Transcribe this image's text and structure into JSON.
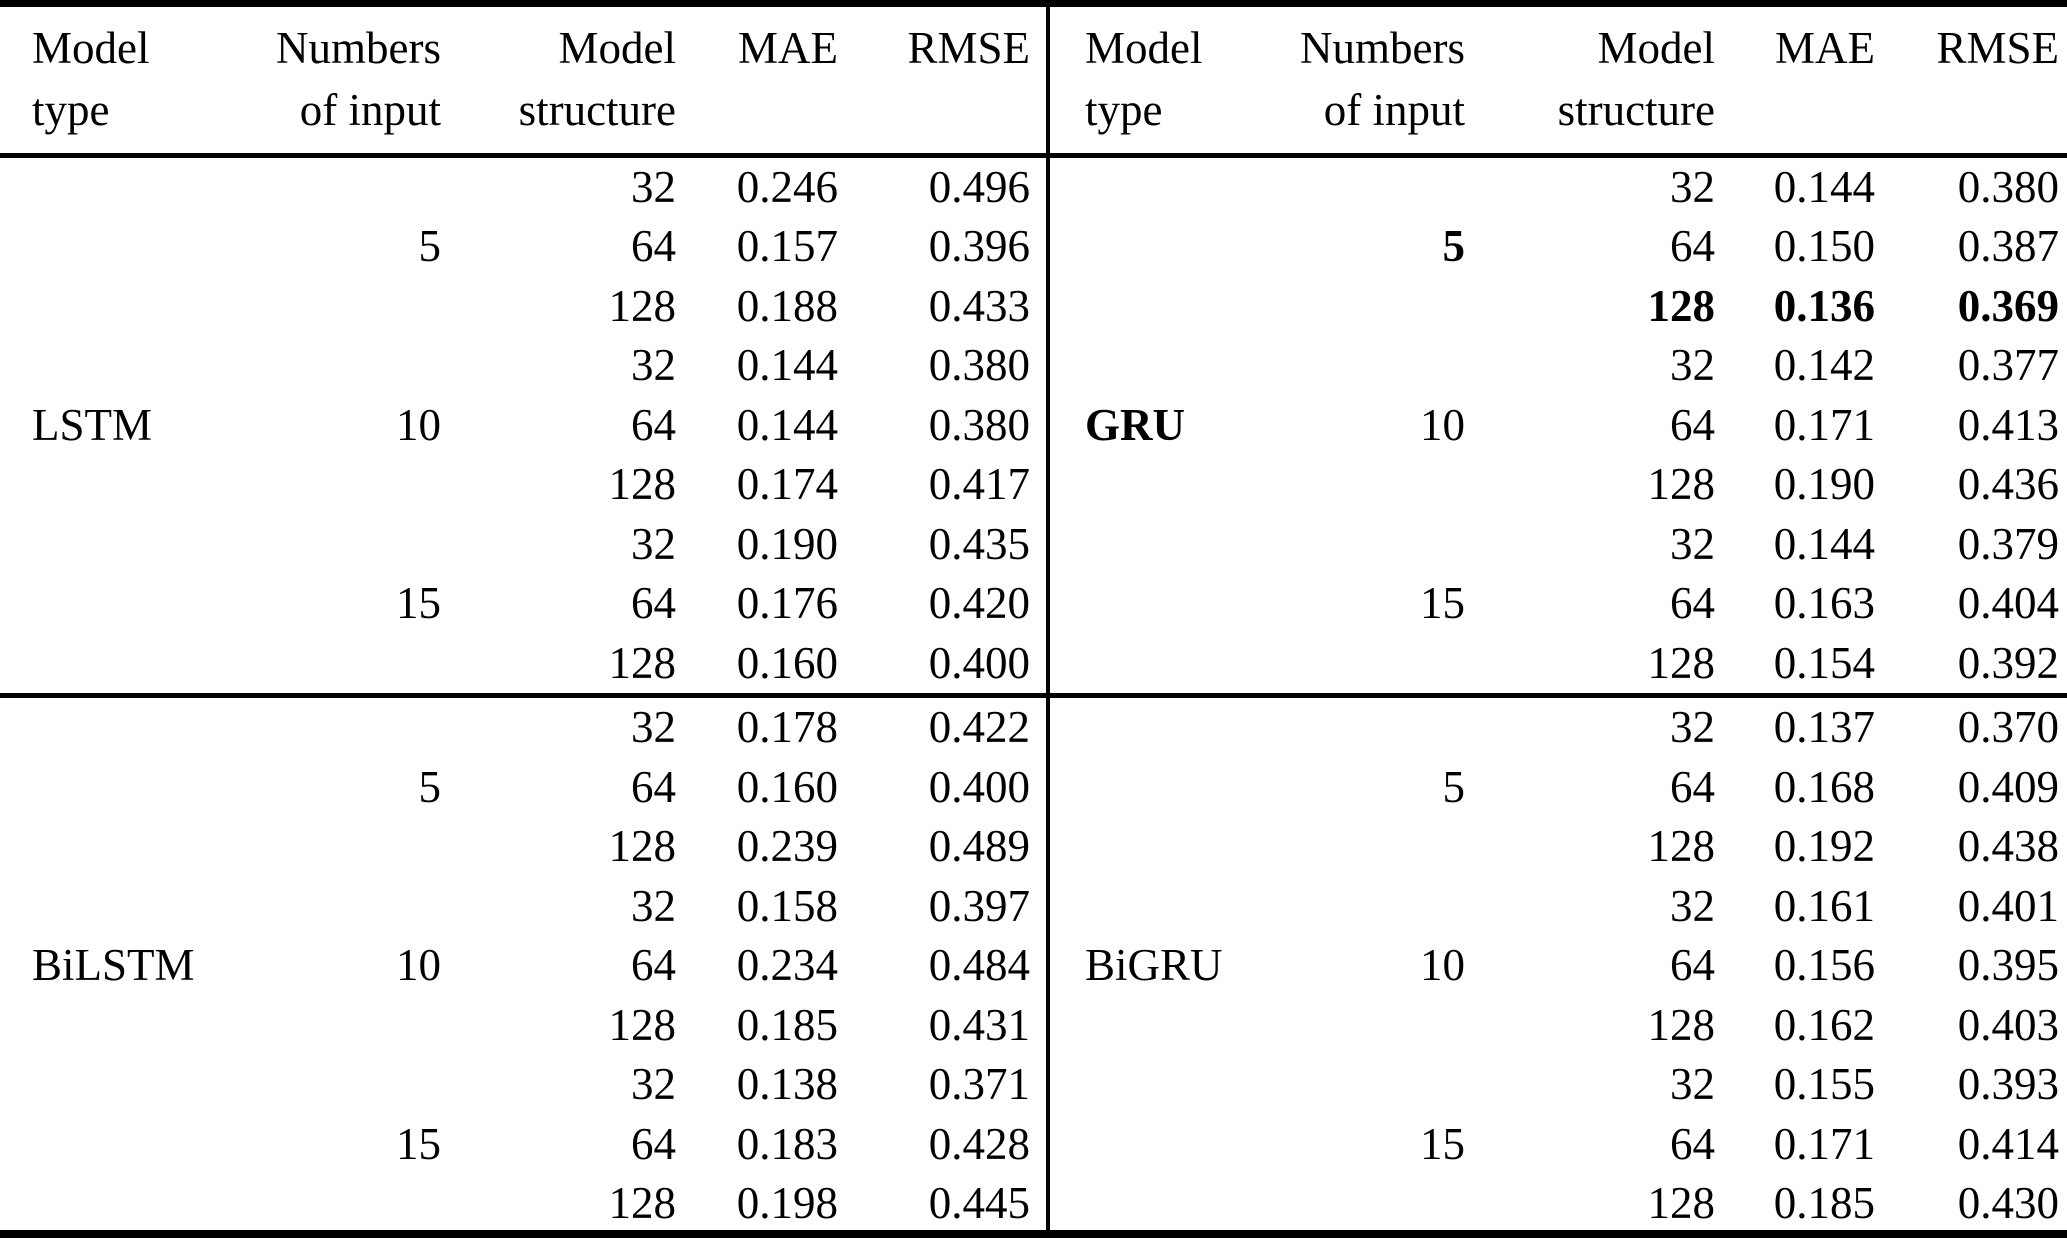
{
  "colors": {
    "text": "#000000",
    "background": "#ffffff",
    "rule": "#000000"
  },
  "table": {
    "headers": {
      "model_type": [
        "Model",
        "type"
      ],
      "numbers_of_input": [
        "Numbers",
        "of input"
      ],
      "model_structure": [
        "Model",
        "structure"
      ],
      "mae": "MAE",
      "rmse": "RMSE"
    },
    "panels": [
      {
        "model_type": "LSTM",
        "model_type_bold": false,
        "position": "top-left",
        "groups": [
          {
            "input": "5",
            "input_bold": false,
            "rows": [
              {
                "structure": "32",
                "mae": "0.246",
                "rmse": "0.496",
                "bold": false
              },
              {
                "structure": "64",
                "mae": "0.157",
                "rmse": "0.396",
                "bold": false
              },
              {
                "structure": "128",
                "mae": "0.188",
                "rmse": "0.433",
                "bold": false
              }
            ]
          },
          {
            "input": "10",
            "input_bold": false,
            "rows": [
              {
                "structure": "32",
                "mae": "0.144",
                "rmse": "0.380",
                "bold": false
              },
              {
                "structure": "64",
                "mae": "0.144",
                "rmse": "0.380",
                "bold": false
              },
              {
                "structure": "128",
                "mae": "0.174",
                "rmse": "0.417",
                "bold": false
              }
            ]
          },
          {
            "input": "15",
            "input_bold": false,
            "rows": [
              {
                "structure": "32",
                "mae": "0.190",
                "rmse": "0.435",
                "bold": false
              },
              {
                "structure": "64",
                "mae": "0.176",
                "rmse": "0.420",
                "bold": false
              },
              {
                "structure": "128",
                "mae": "0.160",
                "rmse": "0.400",
                "bold": false
              }
            ]
          }
        ]
      },
      {
        "model_type": "GRU",
        "model_type_bold": true,
        "position": "top-right",
        "groups": [
          {
            "input": "5",
            "input_bold": true,
            "rows": [
              {
                "structure": "32",
                "mae": "0.144",
                "rmse": "0.380",
                "bold": false
              },
              {
                "structure": "64",
                "mae": "0.150",
                "rmse": "0.387",
                "bold": false
              },
              {
                "structure": "128",
                "mae": "0.136",
                "rmse": "0.369",
                "bold": true
              }
            ]
          },
          {
            "input": "10",
            "input_bold": false,
            "rows": [
              {
                "structure": "32",
                "mae": "0.142",
                "rmse": "0.377",
                "bold": false
              },
              {
                "structure": "64",
                "mae": "0.171",
                "rmse": "0.413",
                "bold": false
              },
              {
                "structure": "128",
                "mae": "0.190",
                "rmse": "0.436",
                "bold": false
              }
            ]
          },
          {
            "input": "15",
            "input_bold": false,
            "rows": [
              {
                "structure": "32",
                "mae": "0.144",
                "rmse": "0.379",
                "bold": false
              },
              {
                "structure": "64",
                "mae": "0.163",
                "rmse": "0.404",
                "bold": false
              },
              {
                "structure": "128",
                "mae": "0.154",
                "rmse": "0.392",
                "bold": false
              }
            ]
          }
        ]
      },
      {
        "model_type": "BiLSTM",
        "model_type_bold": false,
        "position": "bottom-left",
        "groups": [
          {
            "input": "5",
            "input_bold": false,
            "rows": [
              {
                "structure": "32",
                "mae": "0.178",
                "rmse": "0.422",
                "bold": false
              },
              {
                "structure": "64",
                "mae": "0.160",
                "rmse": "0.400",
                "bold": false
              },
              {
                "structure": "128",
                "mae": "0.239",
                "rmse": "0.489",
                "bold": false
              }
            ]
          },
          {
            "input": "10",
            "input_bold": false,
            "rows": [
              {
                "structure": "32",
                "mae": "0.158",
                "rmse": "0.397",
                "bold": false
              },
              {
                "structure": "64",
                "mae": "0.234",
                "rmse": "0.484",
                "bold": false
              },
              {
                "structure": "128",
                "mae": "0.185",
                "rmse": "0.431",
                "bold": false
              }
            ]
          },
          {
            "input": "15",
            "input_bold": false,
            "rows": [
              {
                "structure": "32",
                "mae": "0.138",
                "rmse": "0.371",
                "bold": false
              },
              {
                "structure": "64",
                "mae": "0.183",
                "rmse": "0.428",
                "bold": false
              },
              {
                "structure": "128",
                "mae": "0.198",
                "rmse": "0.445",
                "bold": false
              }
            ]
          }
        ]
      },
      {
        "model_type": "BiGRU",
        "model_type_bold": false,
        "position": "bottom-right",
        "groups": [
          {
            "input": "5",
            "input_bold": false,
            "rows": [
              {
                "structure": "32",
                "mae": "0.137",
                "rmse": "0.370",
                "bold": false
              },
              {
                "structure": "64",
                "mae": "0.168",
                "rmse": "0.409",
                "bold": false
              },
              {
                "structure": "128",
                "mae": "0.192",
                "rmse": "0.438",
                "bold": false
              }
            ]
          },
          {
            "input": "10",
            "input_bold": false,
            "rows": [
              {
                "structure": "32",
                "mae": "0.161",
                "rmse": "0.401",
                "bold": false
              },
              {
                "structure": "64",
                "mae": "0.156",
                "rmse": "0.395",
                "bold": false
              },
              {
                "structure": "128",
                "mae": "0.162",
                "rmse": "0.403",
                "bold": false
              }
            ]
          },
          {
            "input": "15",
            "input_bold": false,
            "rows": [
              {
                "structure": "32",
                "mae": "0.155",
                "rmse": "0.393",
                "bold": false
              },
              {
                "structure": "64",
                "mae": "0.171",
                "rmse": "0.414",
                "bold": false
              },
              {
                "structure": "128",
                "mae": "0.185",
                "rmse": "0.430",
                "bold": false
              }
            ]
          }
        ]
      }
    ]
  }
}
